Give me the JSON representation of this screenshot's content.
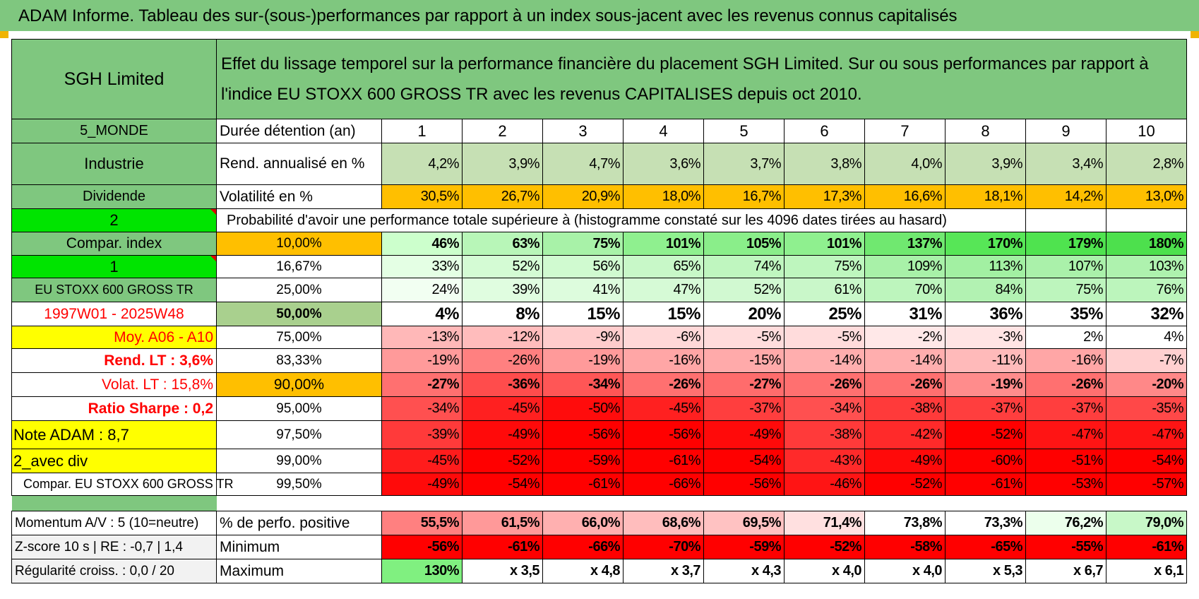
{
  "banner": "ADAM Informe. Tableau des sur-(sous-)performances par rapport à un index sous-jacent avec les revenus connus capitalisés",
  "header": {
    "company": "SGH Limited",
    "description": "Effet du lissage temporel sur la performance financière du placement SGH Limited. Sur ou sous performances par rapport à l'indice EU STOXX 600 GROSS TR avec les revenus CAPITALISES depuis oct 2010."
  },
  "labels": {
    "monde": "5_MONDE",
    "industrie": "Industrie",
    "dividende": "Dividende",
    "num2": "2",
    "compar": "Compar. index",
    "num1": "1",
    "index_name": "EU STOXX 600 GROSS TR",
    "period": "1997W01 - 2025W48",
    "moy": "Moy. A06 - A10",
    "rend_lt": "Rend. LT :   3,6%",
    "volat_lt": "Volat. LT :   15,8%",
    "sharpe": "Ratio Sharpe :    0,2",
    "note": "Note ADAM : 8,7",
    "avec_div": "2_avec div",
    "compar_full": "Compar. EU STOXX 600 GROSS TR",
    "momentum": "Momentum A/V : 5 (10=neutre)",
    "zscore": "Z-score 10 s | RE : -0,7 | 1,4",
    "regularite": "Régularité croiss. : 0,0 / 20"
  },
  "rows_top": {
    "duree_label": "Durée détention (an)",
    "years": [
      "1",
      "2",
      "3",
      "4",
      "5",
      "6",
      "7",
      "8",
      "9",
      "10"
    ],
    "rend_label": "Rend. annualisé en %",
    "rend": [
      "4,2%",
      "3,9%",
      "4,7%",
      "3,6%",
      "3,7%",
      "3,8%",
      "4,0%",
      "3,9%",
      "3,4%",
      "2,8%"
    ],
    "vol_label": "Volatilité en %",
    "vol": [
      "30,5%",
      "26,7%",
      "20,9%",
      "18,0%",
      "16,7%",
      "17,3%",
      "16,6%",
      "18,1%",
      "14,2%",
      "13,0%"
    ],
    "proba_label": "Probabilité d'avoir une performance totale supérieure à (histogramme constaté sur les 4096 dates tirées au hasard)"
  },
  "pct_rows": [
    {
      "pct": "10,00%",
      "values": [
        "46%",
        "63%",
        "75%",
        "101%",
        "105%",
        "101%",
        "137%",
        "170%",
        "179%",
        "180%"
      ]
    },
    {
      "pct": "16,67%",
      "values": [
        "33%",
        "52%",
        "56%",
        "65%",
        "74%",
        "75%",
        "109%",
        "113%",
        "107%",
        "103%"
      ]
    },
    {
      "pct": "25,00%",
      "values": [
        "24%",
        "39%",
        "41%",
        "47%",
        "52%",
        "61%",
        "70%",
        "84%",
        "75%",
        "76%"
      ]
    },
    {
      "pct": "50,00%",
      "values": [
        "4%",
        "8%",
        "15%",
        "15%",
        "20%",
        "25%",
        "31%",
        "36%",
        "35%",
        "32%"
      ]
    },
    {
      "pct": "75,00%",
      "values": [
        "-13%",
        "-12%",
        "-9%",
        "-6%",
        "-5%",
        "-5%",
        "-2%",
        "-3%",
        "2%",
        "4%"
      ]
    },
    {
      "pct": "83,33%",
      "values": [
        "-19%",
        "-26%",
        "-19%",
        "-16%",
        "-15%",
        "-14%",
        "-14%",
        "-11%",
        "-16%",
        "-7%"
      ]
    },
    {
      "pct": "90,00%",
      "values": [
        "-27%",
        "-36%",
        "-34%",
        "-26%",
        "-27%",
        "-26%",
        "-26%",
        "-19%",
        "-26%",
        "-20%"
      ]
    },
    {
      "pct": "95,00%",
      "values": [
        "-34%",
        "-45%",
        "-50%",
        "-45%",
        "-37%",
        "-34%",
        "-38%",
        "-37%",
        "-37%",
        "-35%"
      ]
    },
    {
      "pct": "97,50%",
      "values": [
        "-39%",
        "-49%",
        "-56%",
        "-56%",
        "-49%",
        "-38%",
        "-42%",
        "-52%",
        "-47%",
        "-47%"
      ]
    },
    {
      "pct": "99,00%",
      "values": [
        "-45%",
        "-52%",
        "-59%",
        "-61%",
        "-54%",
        "-43%",
        "-49%",
        "-60%",
        "-51%",
        "-54%"
      ]
    },
    {
      "pct": "99,50%",
      "values": [
        "-49%",
        "-54%",
        "-61%",
        "-66%",
        "-56%",
        "-46%",
        "-52%",
        "-61%",
        "-53%",
        "-57%"
      ]
    }
  ],
  "bottom": {
    "pos_label": "% de perfo. positive",
    "pos": [
      "55,5%",
      "61,5%",
      "66,0%",
      "68,6%",
      "69,5%",
      "71,4%",
      "73,8%",
      "73,3%",
      "76,2%",
      "79,0%"
    ],
    "min_label": "Minimum",
    "min": [
      "-56%",
      "-61%",
      "-66%",
      "-70%",
      "-59%",
      "-52%",
      "-58%",
      "-65%",
      "-55%",
      "-61%"
    ],
    "max_label": "Maximum",
    "max": [
      "130%",
      "x 3,5",
      "x 4,8",
      "x 3,7",
      "x 4,3",
      "x 4,0",
      "x 4,0",
      "x 5,3",
      "x 6,7",
      "x 6,1"
    ]
  },
  "colors": {
    "rend": "#c6e0b4",
    "vol": "#ffbf00",
    "row10": [
      "#ccffcc",
      "#b8f6b8",
      "#a8f2a8",
      "#8ff08f",
      "#8aee8a",
      "#8ff08f",
      "#70e870",
      "#57e657",
      "#4fe34f",
      "#4de04d"
    ],
    "row16": [
      "#e4ffe4",
      "#d4fbd4",
      "#d0fad0",
      "#c8f8c8",
      "#bff6bf",
      "#bef6be",
      "#a8f1a8",
      "#a2f0a2",
      "#aaf1aa",
      "#aef2ae"
    ],
    "row25": [
      "#f2fff2",
      "#e0fde0",
      "#ddfcdd",
      "#d6fad6",
      "#d1f9d1",
      "#c9f7c9",
      "#bdf5bd",
      "#b2f2b2",
      "#bdf5bd",
      "#bcf5bc"
    ],
    "row50": [
      "#ffffff",
      "#ffffff",
      "#ffffff",
      "#ffffff",
      "#ffffff",
      "#ffffff",
      "#ffffff",
      "#ffffff",
      "#ffffff",
      "#ffffff"
    ],
    "row75": [
      "#ffb8b8",
      "#ffbcbc",
      "#ffcccc",
      "#ffd8d8",
      "#ffdcdc",
      "#ffdcdc",
      "#ffe8e8",
      "#ffe4e4",
      "#ffffff",
      "#ffffff"
    ],
    "row83": [
      "#ff9a9a",
      "#ff8080",
      "#ff9a9a",
      "#ffa6a6",
      "#ffaaaa",
      "#ffaeae",
      "#ffaeae",
      "#ffbaba",
      "#ffa6a6",
      "#ffd0d0"
    ],
    "row90": [
      "#ff7070",
      "#ff4c4c",
      "#ff5656",
      "#ff7070",
      "#ff6c6c",
      "#ff7070",
      "#ff7070",
      "#ff8c8c",
      "#ff7070",
      "#ff8888"
    ],
    "row95": [
      "#ff5050",
      "#ff2020",
      "#ff0c0c",
      "#ff2020",
      "#ff3e3e",
      "#ff5050",
      "#ff3a3a",
      "#ff3e3e",
      "#ff3e3e",
      "#ff4848"
    ],
    "row97": [
      "#ff3a3a",
      "#ff0a0a",
      "#ff0000",
      "#ff0000",
      "#ff0a0a",
      "#ff3a3a",
      "#ff2a2a",
      "#ff0000",
      "#ff1414",
      "#ff1414"
    ],
    "row99": [
      "#ff1c1c",
      "#ff0000",
      "#ff0000",
      "#ff0000",
      "#ff0000",
      "#ff2a2a",
      "#ff0a0a",
      "#ff0000",
      "#ff0000",
      "#ff0000"
    ],
    "row995": [
      "#ff0a0a",
      "#ff0000",
      "#ff0000",
      "#ff0000",
      "#ff0000",
      "#ff1414",
      "#ff0000",
      "#ff0000",
      "#ff0000",
      "#ff0000"
    ],
    "pos": [
      "#ff8080",
      "#ff9999",
      "#ffb0b0",
      "#ffbdbd",
      "#ffc2c2",
      "#ffe0e0",
      "#ffffff",
      "#ffffff",
      "#ecffec",
      "#c8f8c8"
    ],
    "min": [
      "#ff0000",
      "#ff0000",
      "#ff0000",
      "#ff0000",
      "#ff0000",
      "#ff0000",
      "#ff0000",
      "#ff0000",
      "#ff0000",
      "#ff0000"
    ],
    "max": [
      "#80f080",
      "#ffffff",
      "#ffffff",
      "#ffffff",
      "#ffffff",
      "#ffffff",
      "#ffffff",
      "#ffffff",
      "#ffffff",
      "#ffffff"
    ]
  }
}
